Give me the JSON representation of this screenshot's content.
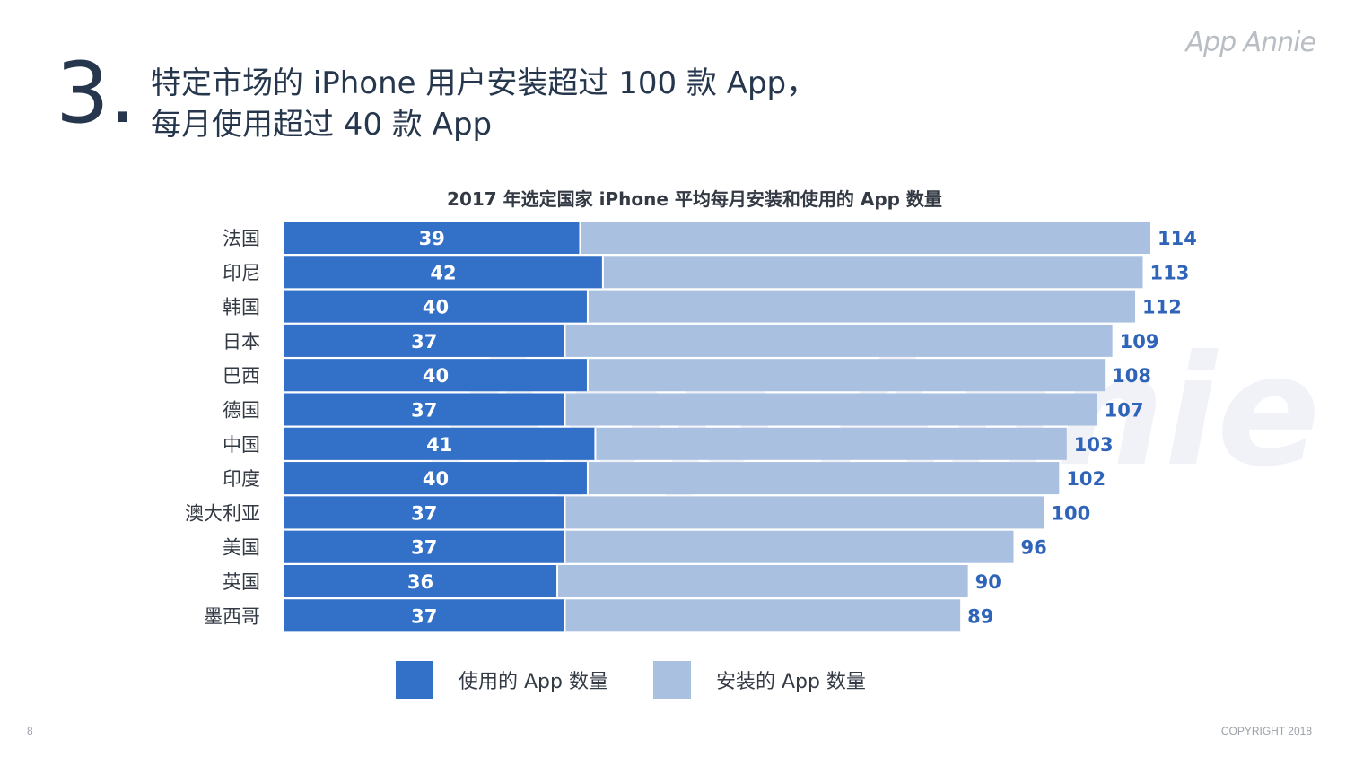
{
  "header": {
    "section_number": "3.",
    "title_line1": "特定市场的 iPhone 用户安装超过 100 款 App，",
    "title_line2": "每月使用超过 40 款 App"
  },
  "brand": "App Annie",
  "watermark": "App Annie",
  "footer": {
    "page_number": "8",
    "copyright": "COPYRIGHT 2018"
  },
  "colors": {
    "used": "#3370c8",
    "installed": "#a9c0e0",
    "installed_label": "#2f64b9"
  },
  "legend": {
    "used_label": "使用的 App 数量",
    "installed_label": "安装的 App 数量"
  },
  "chart_data": {
    "type": "bar",
    "orientation": "horizontal",
    "title": "2017 年选定国家 iPhone 平均每月安装和使用的 App 数量",
    "categories": [
      "法国",
      "印尼",
      "韩国",
      "日本",
      "巴西",
      "德国",
      "中国",
      "印度",
      "澳大利亚",
      "美国",
      "英国",
      "墨西哥"
    ],
    "series": [
      {
        "name": "使用的 App 数量",
        "values": [
          39,
          42,
          40,
          37,
          40,
          37,
          41,
          40,
          37,
          37,
          36,
          37
        ]
      },
      {
        "name": "安装的 App 数量",
        "values": [
          114,
          113,
          112,
          109,
          108,
          107,
          103,
          102,
          100,
          96,
          90,
          89
        ]
      }
    ],
    "xlim": [
      0,
      114
    ],
    "grid": false,
    "legend_position": "bottom"
  }
}
